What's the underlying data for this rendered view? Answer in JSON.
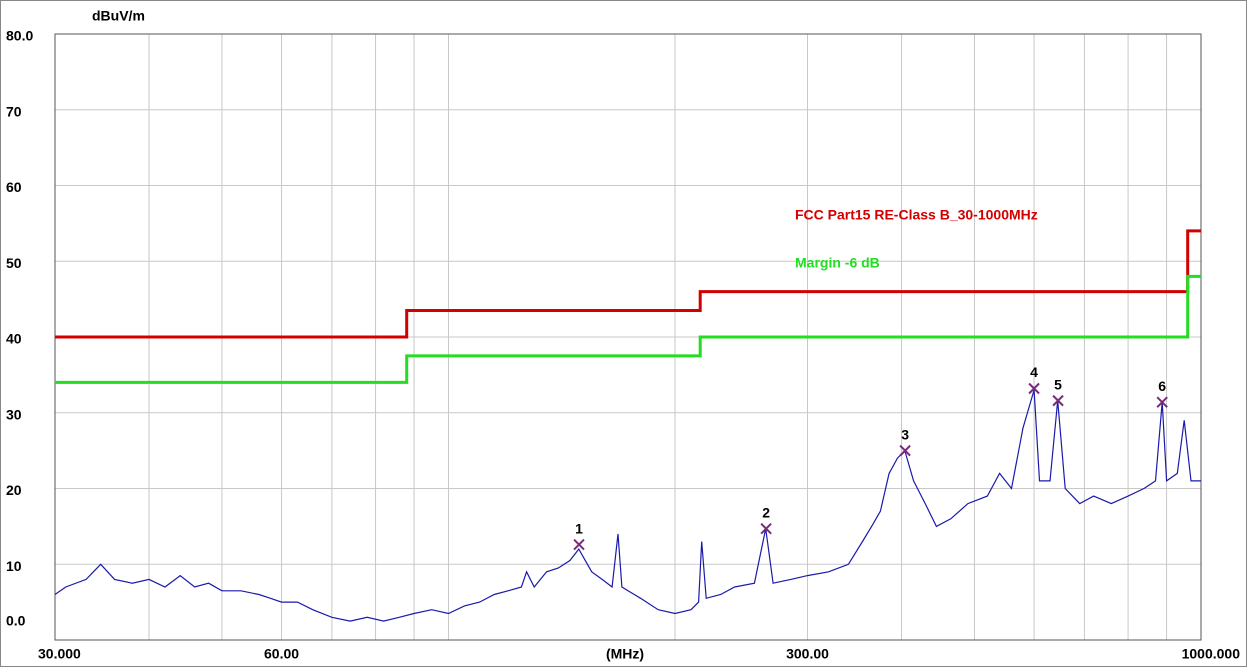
{
  "chart_data": {
    "type": "line",
    "xscale": "log",
    "grid": true,
    "ylabel": "dBuV/m",
    "xlabel": "(MHz)",
    "xlim": [
      30,
      1000
    ],
    "ylim": [
      0,
      80
    ],
    "xticks": [
      {
        "value": 30,
        "label": "30.000"
      },
      {
        "value": 60,
        "label": "60.00"
      },
      {
        "value": 300,
        "label": "300.00"
      },
      {
        "value": 1000,
        "label": "1000.000"
      }
    ],
    "xgrid": [
      40,
      50,
      70,
      80,
      90,
      100,
      200,
      400,
      500,
      600,
      700,
      800,
      900
    ],
    "yticks": [
      {
        "value": 0,
        "label": "0.0"
      },
      10,
      20,
      30,
      40,
      50,
      60,
      70,
      {
        "value": 80,
        "label": "80.0"
      }
    ],
    "series": [
      {
        "name": "FCC Part15 RE-Class B_30-1000MHz",
        "color": "#d40000",
        "x": [
          30,
          88,
          88,
          216,
          216,
          960,
          960,
          1000
        ],
        "values": [
          40,
          40,
          43.5,
          43.5,
          46,
          46,
          54,
          54
        ]
      },
      {
        "name": "Margin -6 dB",
        "color": "#22dd22",
        "x": [
          30,
          88,
          88,
          216,
          216,
          960,
          960,
          1000
        ],
        "values": [
          34,
          34,
          37.5,
          37.5,
          40,
          40,
          48,
          48
        ]
      },
      {
        "color": "#1a1aaa",
        "x": [
          30,
          31,
          33,
          34.5,
          36,
          38,
          40,
          42,
          44,
          46,
          48,
          50,
          53,
          56,
          58,
          60,
          63,
          66,
          70,
          74,
          78,
          82,
          86,
          90,
          95,
          100,
          105,
          110,
          115,
          120,
          125,
          127,
          130,
          135,
          140,
          145,
          149,
          155,
          160,
          165,
          168,
          170,
          180,
          190,
          200,
          210,
          215,
          217,
          220,
          230,
          240,
          255,
          264,
          270,
          285,
          300,
          320,
          340,
          355,
          365,
          375,
          385,
          395,
          404,
          415,
          430,
          445,
          465,
          490,
          520,
          540,
          560,
          580,
          600,
          610,
          630,
          645,
          660,
          690,
          720,
          760,
          800,
          840,
          870,
          888,
          900,
          930,
          950,
          970,
          1000
        ],
        "values": [
          6,
          7,
          8,
          10,
          8,
          7.5,
          8,
          7,
          8.5,
          7,
          7.5,
          6.5,
          6.5,
          6,
          5.5,
          5,
          5,
          4,
          3,
          2.5,
          3,
          2.5,
          3,
          3.5,
          4,
          3.5,
          4.5,
          5,
          6,
          6.5,
          7,
          9,
          7,
          9,
          9.5,
          10.5,
          12,
          9,
          8,
          7,
          14,
          7,
          5.5,
          4,
          3.5,
          4,
          5,
          13,
          5.5,
          6,
          7,
          7.5,
          14.7,
          7.5,
          8,
          8.5,
          9,
          10,
          13,
          15,
          17,
          22,
          24,
          25,
          21,
          18,
          15,
          16,
          18,
          19,
          22,
          20,
          28,
          33,
          21,
          21,
          31.6,
          20,
          18,
          19,
          18,
          19,
          20,
          21,
          31.4,
          21,
          22,
          29,
          21,
          21
        ]
      }
    ],
    "markers": {
      "color": "#7a2a7a",
      "labels": [
        "1",
        "2",
        "3",
        "4",
        "5",
        "6"
      ],
      "x": [
        149.1,
        264.3,
        404.4,
        600,
        645.7,
        888
      ],
      "values": [
        12.6,
        14.7,
        25,
        33.2,
        31.6,
        31.4
      ]
    }
  }
}
